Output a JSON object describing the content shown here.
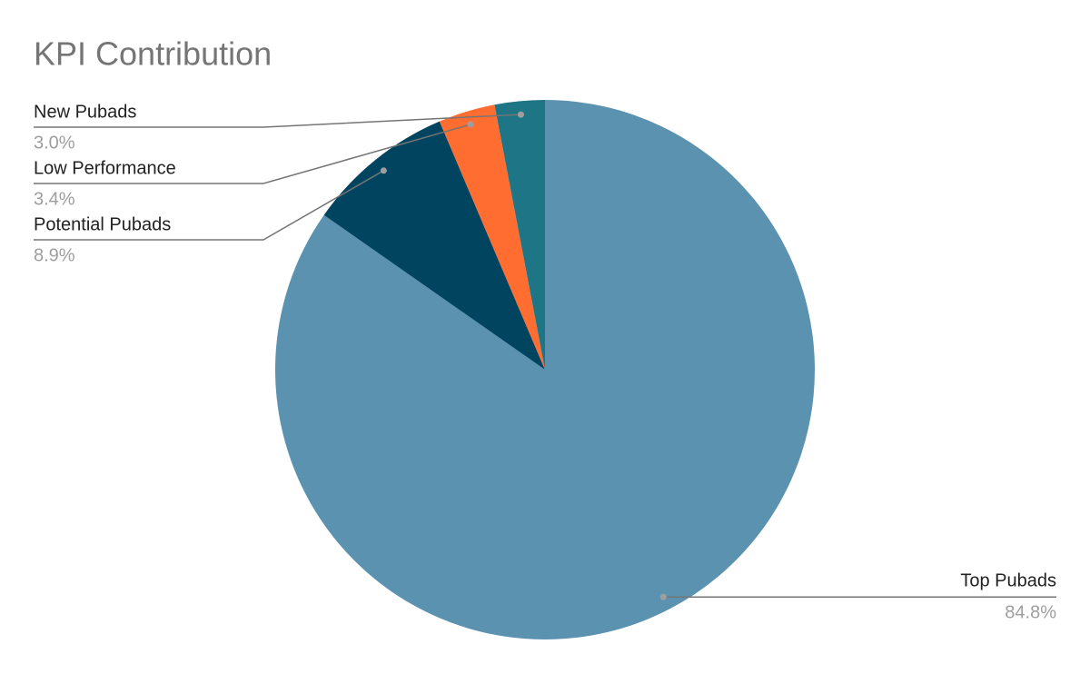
{
  "chart_data": {
    "type": "pie",
    "title": "KPI Contribution",
    "categories": [
      "Top Pubads",
      "Potential Pubads",
      "Low Performance",
      "New Pubads"
    ],
    "values": [
      84.8,
      8.9,
      3.4,
      3.0
    ],
    "value_labels": [
      "84.8%",
      "8.9%",
      "3.4%",
      "3.0%"
    ],
    "colors": [
      "#5b92b0",
      "#00445f",
      "#ff6d31",
      "#1e7585"
    ]
  }
}
